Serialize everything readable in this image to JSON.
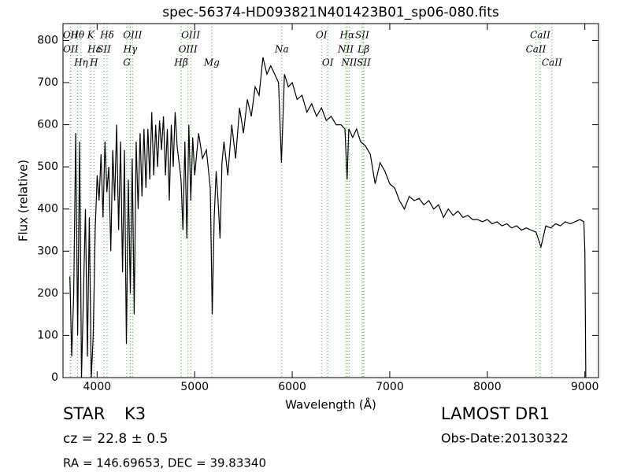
{
  "chart_data": {
    "type": "line",
    "title": "spec-56374-HD093821N401423B01_sp06-080.fits",
    "x_label": "Wavelength (Å)",
    "y_label": "Flux (relative)",
    "xlim": [
      3650,
      9140
    ],
    "ylim": [
      0,
      840
    ],
    "xticks": [
      4000,
      5000,
      6000,
      7000,
      8000,
      9000
    ],
    "yticks": [
      0,
      100,
      200,
      300,
      400,
      500,
      600,
      700,
      800
    ],
    "series": [
      {
        "color": "#000000",
        "x": [
          3720,
          3740,
          3760,
          3780,
          3800,
          3820,
          3840,
          3860,
          3880,
          3900,
          3920,
          3940,
          3960,
          3980,
          4000,
          4020,
          4040,
          4060,
          4080,
          4100,
          4120,
          4140,
          4160,
          4180,
          4200,
          4220,
          4240,
          4260,
          4280,
          4300,
          4320,
          4340,
          4360,
          4380,
          4400,
          4420,
          4440,
          4460,
          4480,
          4500,
          4520,
          4540,
          4560,
          4580,
          4600,
          4620,
          4640,
          4660,
          4680,
          4700,
          4720,
          4740,
          4760,
          4780,
          4800,
          4820,
          4860,
          4880,
          4900,
          4920,
          4940,
          4960,
          4980,
          5000,
          5040,
          5080,
          5120,
          5160,
          5180,
          5200,
          5220,
          5240,
          5260,
          5280,
          5300,
          5340,
          5380,
          5420,
          5460,
          5500,
          5540,
          5580,
          5620,
          5660,
          5700,
          5740,
          5780,
          5820,
          5860,
          5890,
          5920,
          5960,
          6000,
          6050,
          6100,
          6150,
          6200,
          6250,
          6300,
          6350,
          6400,
          6450,
          6500,
          6540,
          6563,
          6580,
          6620,
          6660,
          6700,
          6750,
          6800,
          6850,
          6900,
          6950,
          7000,
          7050,
          7100,
          7150,
          7200,
          7250,
          7300,
          7350,
          7400,
          7450,
          7500,
          7550,
          7600,
          7650,
          7700,
          7750,
          7800,
          7850,
          7900,
          7950,
          8000,
          8050,
          8100,
          8150,
          8200,
          8250,
          8300,
          8350,
          8400,
          8450,
          8500,
          8550,
          8600,
          8650,
          8700,
          8750,
          8800,
          8850,
          8900,
          8950,
          8990,
          9000,
          9010
        ],
        "values": [
          240,
          50,
          200,
          580,
          100,
          560,
          0,
          200,
          400,
          50,
          380,
          0,
          100,
          350,
          480,
          420,
          530,
          380,
          560,
          440,
          500,
          300,
          540,
          420,
          600,
          350,
          560,
          250,
          540,
          80,
          470,
          200,
          520,
          150,
          560,
          400,
          580,
          430,
          590,
          450,
          590,
          470,
          630,
          480,
          600,
          500,
          610,
          540,
          620,
          480,
          590,
          420,
          600,
          500,
          630,
          550,
          470,
          350,
          560,
          330,
          600,
          420,
          570,
          480,
          580,
          520,
          540,
          450,
          150,
          380,
          490,
          420,
          330,
          510,
          560,
          480,
          600,
          520,
          640,
          580,
          660,
          620,
          690,
          670,
          760,
          720,
          740,
          720,
          700,
          510,
          720,
          690,
          700,
          660,
          670,
          630,
          650,
          620,
          640,
          610,
          620,
          600,
          600,
          590,
          470,
          590,
          570,
          590,
          560,
          550,
          530,
          460,
          510,
          490,
          460,
          450,
          420,
          400,
          430,
          420,
          425,
          410,
          420,
          400,
          410,
          380,
          400,
          385,
          395,
          380,
          385,
          375,
          375,
          370,
          375,
          365,
          370,
          360,
          365,
          355,
          360,
          350,
          355,
          350,
          345,
          310,
          360,
          355,
          365,
          360,
          370,
          365,
          370,
          375,
          370,
          300,
          0
        ]
      }
    ],
    "lines": [
      {
        "label": "Hθ",
        "wavelength": 3798
      },
      {
        "label": "K",
        "wavelength": 3934
      },
      {
        "label": "Hδ",
        "wavelength": 4102
      },
      {
        "label": "OIII",
        "wavelength": 4363
      },
      {
        "label": "OIII",
        "wavelength": 4959
      },
      {
        "label": "OI",
        "wavelength": 6300
      },
      {
        "label": "Hα",
        "wavelength": 6563
      },
      {
        "label": "SII",
        "wavelength": 6717
      },
      {
        "label": "CaII",
        "wavelength": 8542
      },
      {
        "label": "OII",
        "wavelength": 3727
      },
      {
        "label": "Hε",
        "wavelength": 3970
      },
      {
        "label": "SII",
        "wavelength": 4070
      },
      {
        "label": "Hγ",
        "wavelength": 4340
      },
      {
        "label": "OIII",
        "wavelength": 4931
      },
      {
        "label": "Na",
        "wavelength": 5893
      },
      {
        "label": "NII",
        "wavelength": 6548
      },
      {
        "label": "Lβ",
        "wavelength": 6731
      },
      {
        "label": "CaII",
        "wavelength": 8498
      },
      {
        "label": "OII",
        "wavelength": 3729
      },
      {
        "label": "Hη",
        "wavelength": 3835
      },
      {
        "label": "H",
        "wavelength": 3968
      },
      {
        "label": "G",
        "wavelength": 4304
      },
      {
        "label": "Hβ",
        "wavelength": 4861
      },
      {
        "label": "Mg",
        "wavelength": 5175
      },
      {
        "label": "OI",
        "wavelength": 6364
      },
      {
        "label": "NII",
        "wavelength": 6584
      },
      {
        "label": "SII",
        "wavelength": 6734
      },
      {
        "label": "CaII",
        "wavelength": 8662
      }
    ]
  },
  "footer": {
    "class": "STAR",
    "subclass": "K3",
    "cz": "cz = 22.8 ± 0.5",
    "coords": "RA = 146.69653, DEC = 39.83340",
    "survey": "LAMOST DR1",
    "obs_date": "Obs-Date:20130322"
  }
}
